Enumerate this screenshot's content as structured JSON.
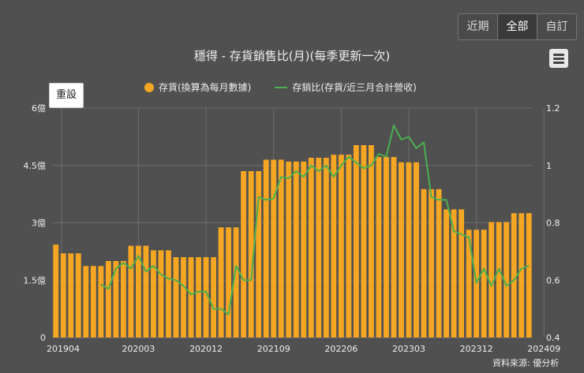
{
  "range_buttons": [
    {
      "label": "近期",
      "active": false
    },
    {
      "label": "全部",
      "active": true
    },
    {
      "label": "自訂",
      "active": false
    }
  ],
  "reset_label": "重設",
  "source": "資料來源: 優分析",
  "chart_data": {
    "type": "bar+line",
    "title": "穩得 - 存貨銷售比(月)(每季更新一次)",
    "legend_position": "top",
    "grid": true,
    "series": [
      {
        "name": "存貨(換算為每月數據)",
        "type": "bar",
        "color": "#f5a623",
        "axis": "left",
        "values": [
          2.43,
          2.2,
          2.2,
          2.2,
          1.87,
          1.87,
          1.87,
          2.0,
          2.0,
          2.0,
          2.4,
          2.4,
          2.4,
          2.28,
          2.28,
          2.28,
          2.1,
          2.1,
          2.1,
          2.1,
          2.1,
          2.1,
          2.88,
          2.88,
          2.88,
          4.35,
          4.35,
          4.35,
          4.65,
          4.65,
          4.65,
          4.6,
          4.6,
          4.6,
          4.7,
          4.7,
          4.7,
          4.78,
          4.78,
          4.78,
          5.03,
          5.03,
          5.03,
          4.72,
          4.72,
          4.72,
          4.58,
          4.58,
          4.58,
          3.88,
          3.88,
          3.88,
          3.35,
          3.35,
          3.35,
          2.82,
          2.82,
          2.82,
          3.02,
          3.02,
          3.02,
          3.25,
          3.25,
          3.25
        ]
      },
      {
        "name": "存銷比(存貨/近三月合計營收)",
        "type": "line",
        "color": "#4caf50",
        "axis": "right",
        "values": [
          null,
          null,
          null,
          null,
          null,
          null,
          0.585,
          0.57,
          0.64,
          0.66,
          0.64,
          0.685,
          0.63,
          0.65,
          0.62,
          0.605,
          0.6,
          0.58,
          0.55,
          0.56,
          0.56,
          0.5,
          0.5,
          0.48,
          0.65,
          0.6,
          0.6,
          0.89,
          0.88,
          0.885,
          0.96,
          0.955,
          0.98,
          0.96,
          1.0,
          0.98,
          1.0,
          0.96,
          1.0,
          1.03,
          1.01,
          0.99,
          1.0,
          1.04,
          1.03,
          1.14,
          1.09,
          1.1,
          1.06,
          1.08,
          0.89,
          0.88,
          0.88,
          0.77,
          0.76,
          0.75,
          0.59,
          0.64,
          0.58,
          0.64,
          0.58,
          0.6,
          0.64,
          0.65
        ]
      }
    ],
    "x_tick_labels": [
      {
        "index": 0,
        "label": "201904"
      },
      {
        "index": 11,
        "label": "202003"
      },
      {
        "index": 20,
        "label": "202012"
      },
      {
        "index": 29,
        "label": "202109"
      },
      {
        "index": 38,
        "label": "202206"
      },
      {
        "index": 47,
        "label": "202303"
      },
      {
        "index": 56,
        "label": "202312"
      },
      {
        "index": 65,
        "label": "202409"
      }
    ],
    "y_left": {
      "min": 0,
      "max": 6,
      "ticks": [
        0,
        1.5,
        3,
        4.5,
        6
      ],
      "tick_labels": [
        "0",
        "1.5億",
        "3億",
        "4.5億",
        "6億"
      ]
    },
    "y_right": {
      "min": 0.4,
      "max": 1.2,
      "ticks": [
        0.4,
        0.6,
        0.8,
        1,
        1.2
      ],
      "tick_labels": [
        "0.4",
        "0.6",
        "0.8",
        "1",
        "1.2"
      ]
    }
  }
}
